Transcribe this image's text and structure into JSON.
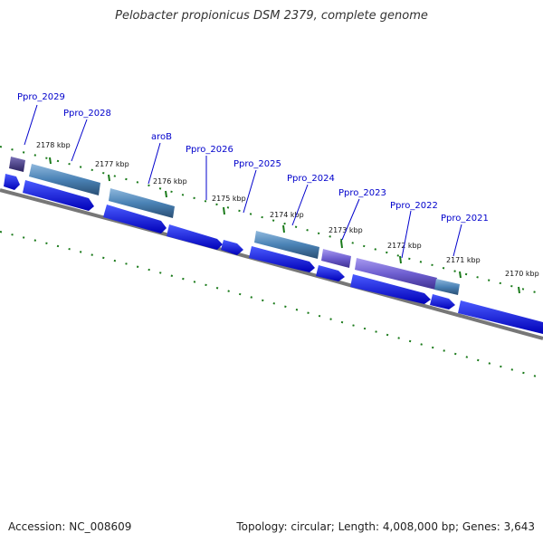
{
  "title": "Pelobacter propionicus DSM 2379, complete genome",
  "footer": {
    "accession": "Accession: NC_008609",
    "summary": "Topology: circular; Length: 4,008,000 bp; Genes: 3,643"
  },
  "colors": {
    "cds_forward": "#0000ee",
    "gene_feature": "#4a82b5",
    "gene_feature_alt": "#6e5fd0",
    "backbone": "#777777",
    "tick": "#1a7a1a",
    "gene_label": "#0000cc"
  },
  "kbp_labels": [
    "2178 kbp",
    "2177 kbp",
    "2176 kbp",
    "2175 kbp",
    "2174 kbp",
    "2173 kbp",
    "2172 kbp",
    "2171 kbp",
    "2170 kbp"
  ],
  "gene_labels": [
    "Ppro_2029",
    "Ppro_2028",
    "aroB",
    "Ppro_2026",
    "Ppro_2025",
    "Ppro_2024",
    "Ppro_2023",
    "Ppro_2022",
    "Ppro_2021"
  ]
}
